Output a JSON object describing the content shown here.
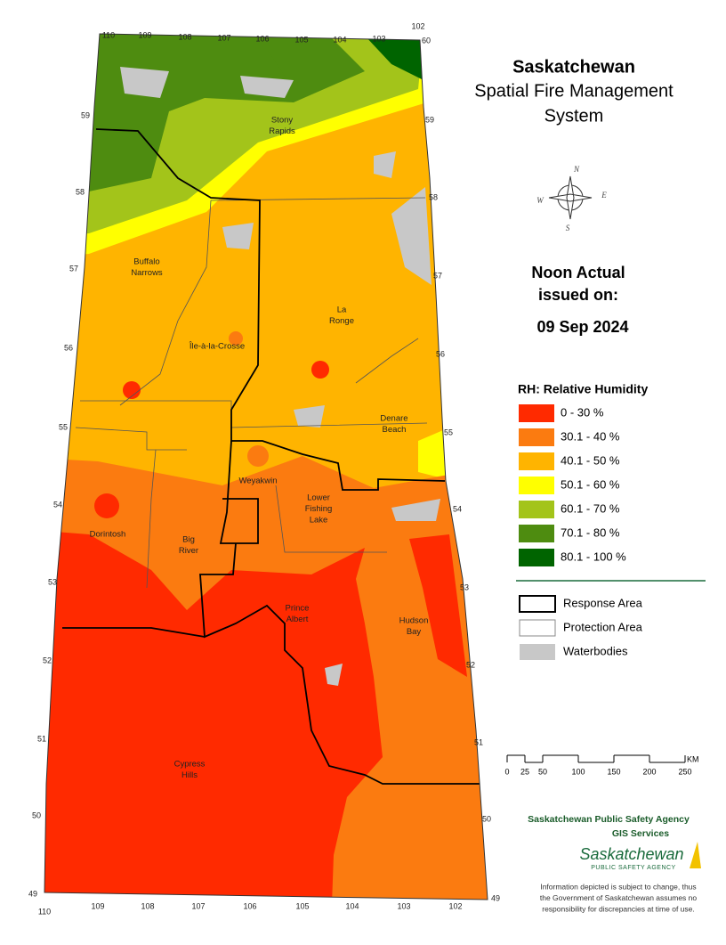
{
  "header": {
    "title": "Saskatchewan",
    "subtitle": [
      "Spatial Fire Management",
      "System"
    ]
  },
  "compass": [
    "N",
    "E",
    "S",
    "W"
  ],
  "issue": {
    "lines": [
      "Noon Actual",
      "issued on:"
    ],
    "date": "09 Sep 2024"
  },
  "legend": {
    "title": "RH: Relative Humidity",
    "classes": [
      {
        "label": "0 - 30 %",
        "color": "#ff2a00"
      },
      {
        "label": "30.1 - 40 %",
        "color": "#fb7b10"
      },
      {
        "label": "40.1 - 50 %",
        "color": "#ffb400"
      },
      {
        "label": "50.1 - 60 %",
        "color": "#ffff00"
      },
      {
        "label": "60.1 - 70 %",
        "color": "#a3c41a"
      },
      {
        "label": "70.1 - 80 %",
        "color": "#4e8c10"
      },
      {
        "label": "80.1 - 100 %",
        "color": "#006400"
      }
    ]
  },
  "boundary_legend": [
    "Response Area",
    "Protection Area",
    "Waterbodies"
  ],
  "scale": {
    "ticks": [
      0,
      25,
      50,
      100,
      150,
      200,
      250
    ],
    "unit": "KM"
  },
  "credits": {
    "agency": "Saskatchewan Public Safety Agency",
    "unit": "GIS  Services",
    "logo": [
      "Saskatchewan",
      "PUBLIC SAFETY AGENCY"
    ],
    "disclaimer": [
      "Information depicted is subject to change, thus",
      "the Government of Saskatchewan assumes no",
      "responsibility for discrepancies at time of use."
    ]
  },
  "map": {
    "longitudes_top": [
      "110",
      "109",
      "108",
      "107",
      "106",
      "105",
      "104",
      "103",
      "102"
    ],
    "longitudes_bottom": [
      "110",
      "109",
      "108",
      "107",
      "106",
      "105",
      "104",
      "103",
      "102"
    ],
    "latitudes_left": [
      "59",
      "58",
      "57",
      "56",
      "55",
      "54",
      "53",
      "52",
      "51",
      "50",
      "49"
    ],
    "latitudes_right": [
      "60",
      "59",
      "58",
      "57",
      "56",
      "55",
      "54",
      "53",
      "52",
      "51",
      "50",
      "49"
    ],
    "places": [
      [
        "Stony",
        "Rapids"
      ],
      [
        "Buffalo",
        "Narrows"
      ],
      [
        "La",
        "Ronge"
      ],
      [
        "Île-à-la-Crosse"
      ],
      [
        "Denare",
        "Beach"
      ],
      [
        "Weyakwin"
      ],
      [
        "Lower",
        "Fishing",
        "Lake"
      ],
      [
        "Dorintosh"
      ],
      [
        "Big",
        "River"
      ],
      [
        "Prince",
        "Albert"
      ],
      [
        "Hudson",
        "Bay"
      ],
      [
        "Cypress",
        "Hills"
      ]
    ]
  }
}
